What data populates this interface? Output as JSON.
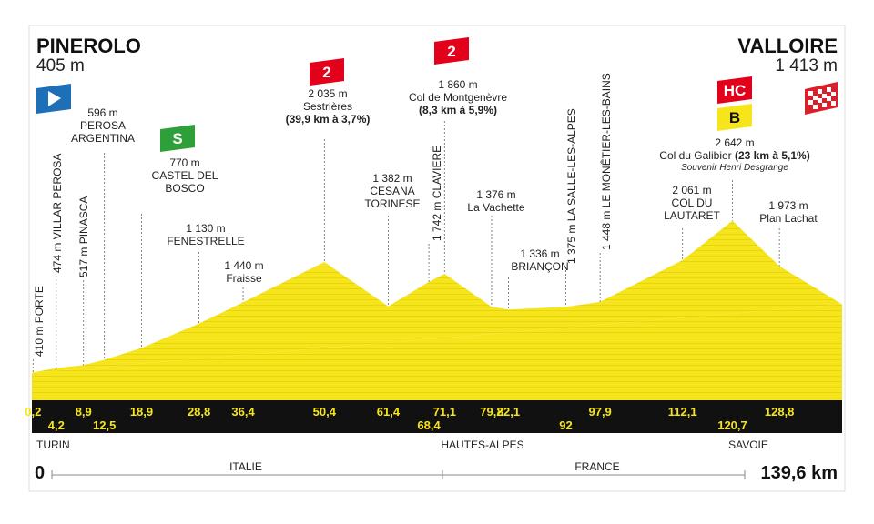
{
  "chart_data": {
    "type": "area",
    "x": [
      0,
      0.2,
      4.2,
      8.9,
      12.5,
      18.9,
      28.8,
      36.4,
      50.4,
      61.4,
      68.4,
      71.1,
      79.2,
      82.1,
      92,
      97.9,
      112.1,
      120.7,
      128.8,
      139.6
    ],
    "values": [
      405,
      410,
      474,
      517,
      596,
      770,
      1130,
      1440,
      2035,
      1382,
      1742,
      1860,
      1376,
      1336,
      1375,
      1448,
      2061,
      2642,
      1973,
      1413
    ],
    "value_labels": [
      "405 m",
      "410 m",
      "474 m",
      "517 m",
      "596 m",
      "770 m",
      "1 130 m",
      "1 440 m",
      "2 035 m",
      "1 382 m",
      "1 742 m",
      "1 860 m",
      "1 376 m",
      "1 336 m",
      "1 375 m",
      "1 448 m",
      "2 061 m",
      "2 642 m",
      "1 973 m",
      "1 413 m"
    ],
    "names": [
      "PINEROLO",
      "PORTE",
      "VILLAR PEROSA",
      "PINASCA",
      "PEROSA ARGENTINA",
      "CASTEL DEL BOSCO",
      "FENESTRELLE",
      "Fraisse",
      "Sestrières",
      "CESANA TORINESE",
      "CLAVIERE",
      "Col de Montgenèvre",
      "La Vachette",
      "BRIANÇON",
      "LA SALLE-LES-ALPES",
      "LE MONÊTIER-LES-BAINS",
      "COL DU LAUTARET",
      "Col du Galibier",
      "Plan Lachat",
      "VALLOIRE"
    ],
    "xticks": [
      {
        "value": 0.2,
        "label": "0,2"
      },
      {
        "value": 4.2,
        "label": "4,2"
      },
      {
        "value": 8.9,
        "label": "8,9"
      },
      {
        "value": 12.5,
        "label": "12,5"
      },
      {
        "value": 18.9,
        "label": "18,9"
      },
      {
        "value": 28.8,
        "label": "28,8"
      },
      {
        "value": 36.4,
        "label": "36,4"
      },
      {
        "value": 50.4,
        "label": "50,4"
      },
      {
        "value": 61.4,
        "label": "61,4"
      },
      {
        "value": 68.4,
        "label": "68,4"
      },
      {
        "value": 71.1,
        "label": "71,1"
      },
      {
        "value": 79.2,
        "label": "79,2"
      },
      {
        "value": 82.1,
        "label": "82,1"
      },
      92,
      {
        "value": 97.9,
        "label": "97,9"
      },
      {
        "value": 112.1,
        "label": "112,1"
      },
      {
        "value": 120.7,
        "label": "120,7"
      },
      {
        "value": 128.8,
        "label": "128,8"
      }
    ],
    "xlim": [
      0,
      139.6
    ],
    "xlim_labels": [
      "0",
      "139,6 km"
    ],
    "color": "#f6e51b",
    "climbs": [
      {
        "name": "Sestrières",
        "detail": "(39,9 km à 3,7%)",
        "badges": [
          "2"
        ]
      },
      {
        "name": "Col de Montgenèvre",
        "detail": "(8,3 km à 5,9%)",
        "badges": [
          "2"
        ]
      },
      {
        "name": "Col du Galibier",
        "detail": "(23 km à 5,1%)",
        "badges": [
          "HC",
          "B"
        ],
        "note": "Souvenir Henri Desgrange"
      }
    ],
    "sprint": {
      "name": "CASTEL DEL BOSCO",
      "badge": "S"
    },
    "departments": [
      "TURIN",
      "HAUTES-ALPES",
      "SAVOIE"
    ],
    "countries": [
      "ITALIE",
      "FRANCE"
    ]
  }
}
